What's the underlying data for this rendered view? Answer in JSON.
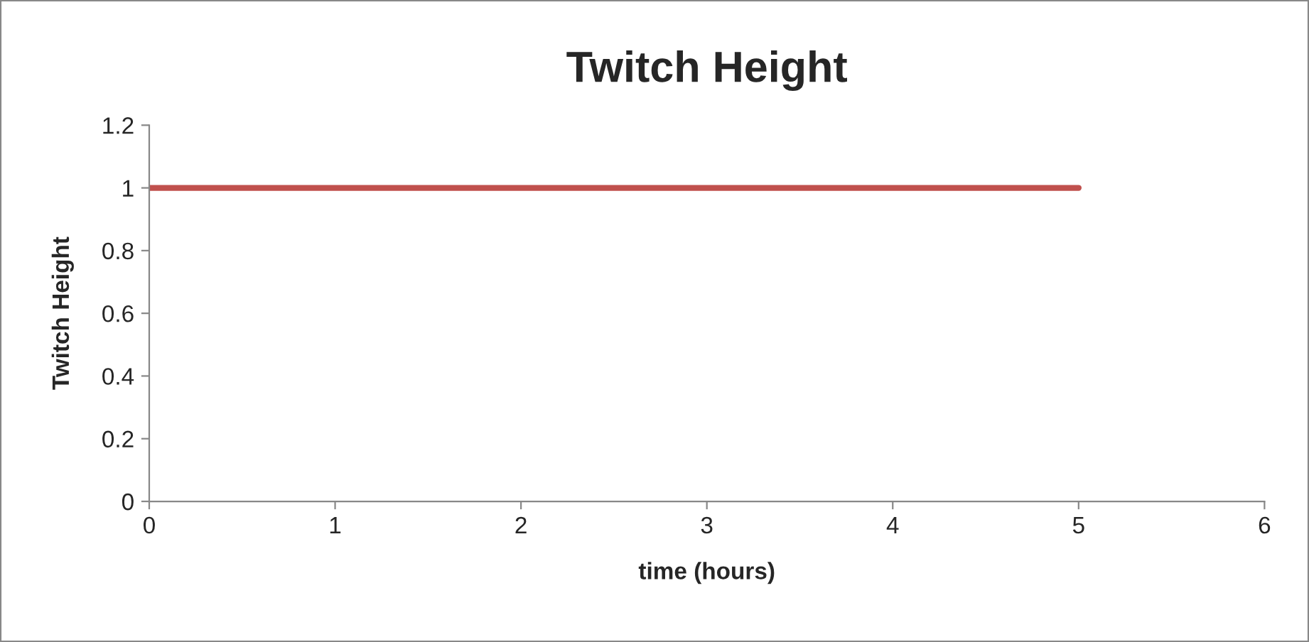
{
  "chart_data": {
    "type": "line",
    "title": "Twitch Height",
    "xlabel": "time (hours)",
    "ylabel": "Twitch Height",
    "x": [
      0,
      5
    ],
    "series": [
      {
        "color": "#c0504d",
        "values": [
          1,
          1
        ]
      }
    ],
    "xlim": [
      0,
      6
    ],
    "xticks": [
      0,
      1,
      2,
      3,
      4,
      5,
      6
    ],
    "ylim": [
      0,
      1.2
    ],
    "yticks": [
      0,
      0.2,
      0.4,
      0.6,
      0.8,
      1,
      1.2
    ],
    "grid": false,
    "legend": false,
    "marker": "none",
    "line_style": "solid"
  }
}
